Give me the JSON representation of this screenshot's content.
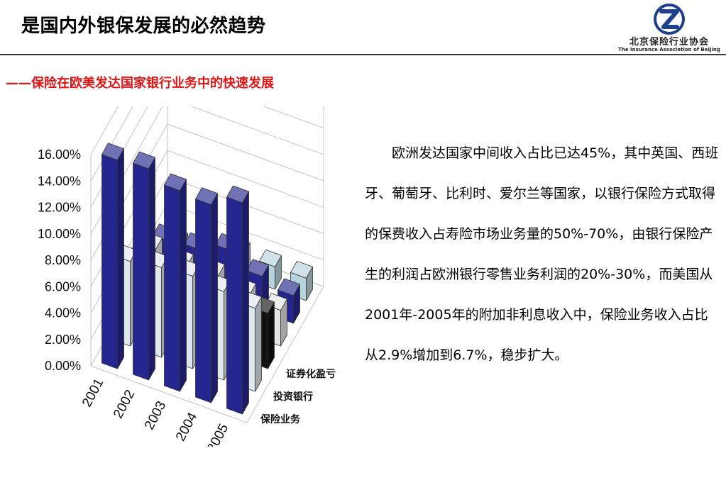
{
  "header": {
    "title": "是国内外银保发展的必然趋势",
    "subtitle": "——保险在欧美发达国家银行业务中的快速发展"
  },
  "logo": {
    "cn_text": "北京保险行业协会",
    "en_text": "The Insurance Association of BeiJing"
  },
  "body_text": "欧洲发达国家中间收入占比已达45%，其中英国、西班牙、葡萄牙、比利时、爱尔兰等国家，以银行保险方式取得的保费收入占寿险市场业务量的50%-70%，由银行保险产生的利润占欧洲银行零售业务利润的20%-30%，而美国从2001年-2005年的附加非利息收入中，保险业务收入占比从2.9%增加到6.7%，稳步扩大。",
  "colors": {
    "title": "#000000",
    "subtitle": "#e01414",
    "navy": "#25258f",
    "black": "#111111",
    "light_gray": "#e4e4e4",
    "light_cyan": "#dde7ee",
    "pale_cyan": "#b7d3dc"
  },
  "chart_data": {
    "type": "bar",
    "subtype": "3d-column",
    "categories": [
      "2001",
      "2002",
      "2003",
      "2004",
      "2005"
    ],
    "ylim": [
      0,
      16
    ],
    "y_tick_labels": [
      "0.00%",
      "2.00%",
      "4.00%",
      "6.00%",
      "8.00%",
      "10.00%",
      "12.00%",
      "14.00%",
      "16.00%"
    ],
    "depth_labels": [
      "证券化盈亏",
      "投资银行",
      "保险业务"
    ],
    "grid": true,
    "series": [
      {
        "values": [
          15.8,
          16.0,
          15.2,
          15.0,
          16.0
        ],
        "color": "#25258f"
      },
      {
        "values": [
          6.4,
          6.8,
          7.0,
          6.7,
          6.3
        ],
        "color": "#dde7ee"
      },
      {
        "values": [
          4.6,
          4.3,
          4.8,
          4.8,
          4.2
        ],
        "color": "#111111"
      },
      {
        "values": [
          3.9,
          3.5,
          3.6,
          3.0,
          2.7
        ],
        "color": "#e4e4e4"
      },
      {
        "values": [
          2.8,
          3.0,
          3.8,
          2.7,
          2.1
        ],
        "color": "#25258f"
      },
      {
        "values": [
          0.8,
          0.9,
          1.8,
          1.7,
          1.7
        ],
        "color": "#b7d3dc"
      }
    ]
  }
}
